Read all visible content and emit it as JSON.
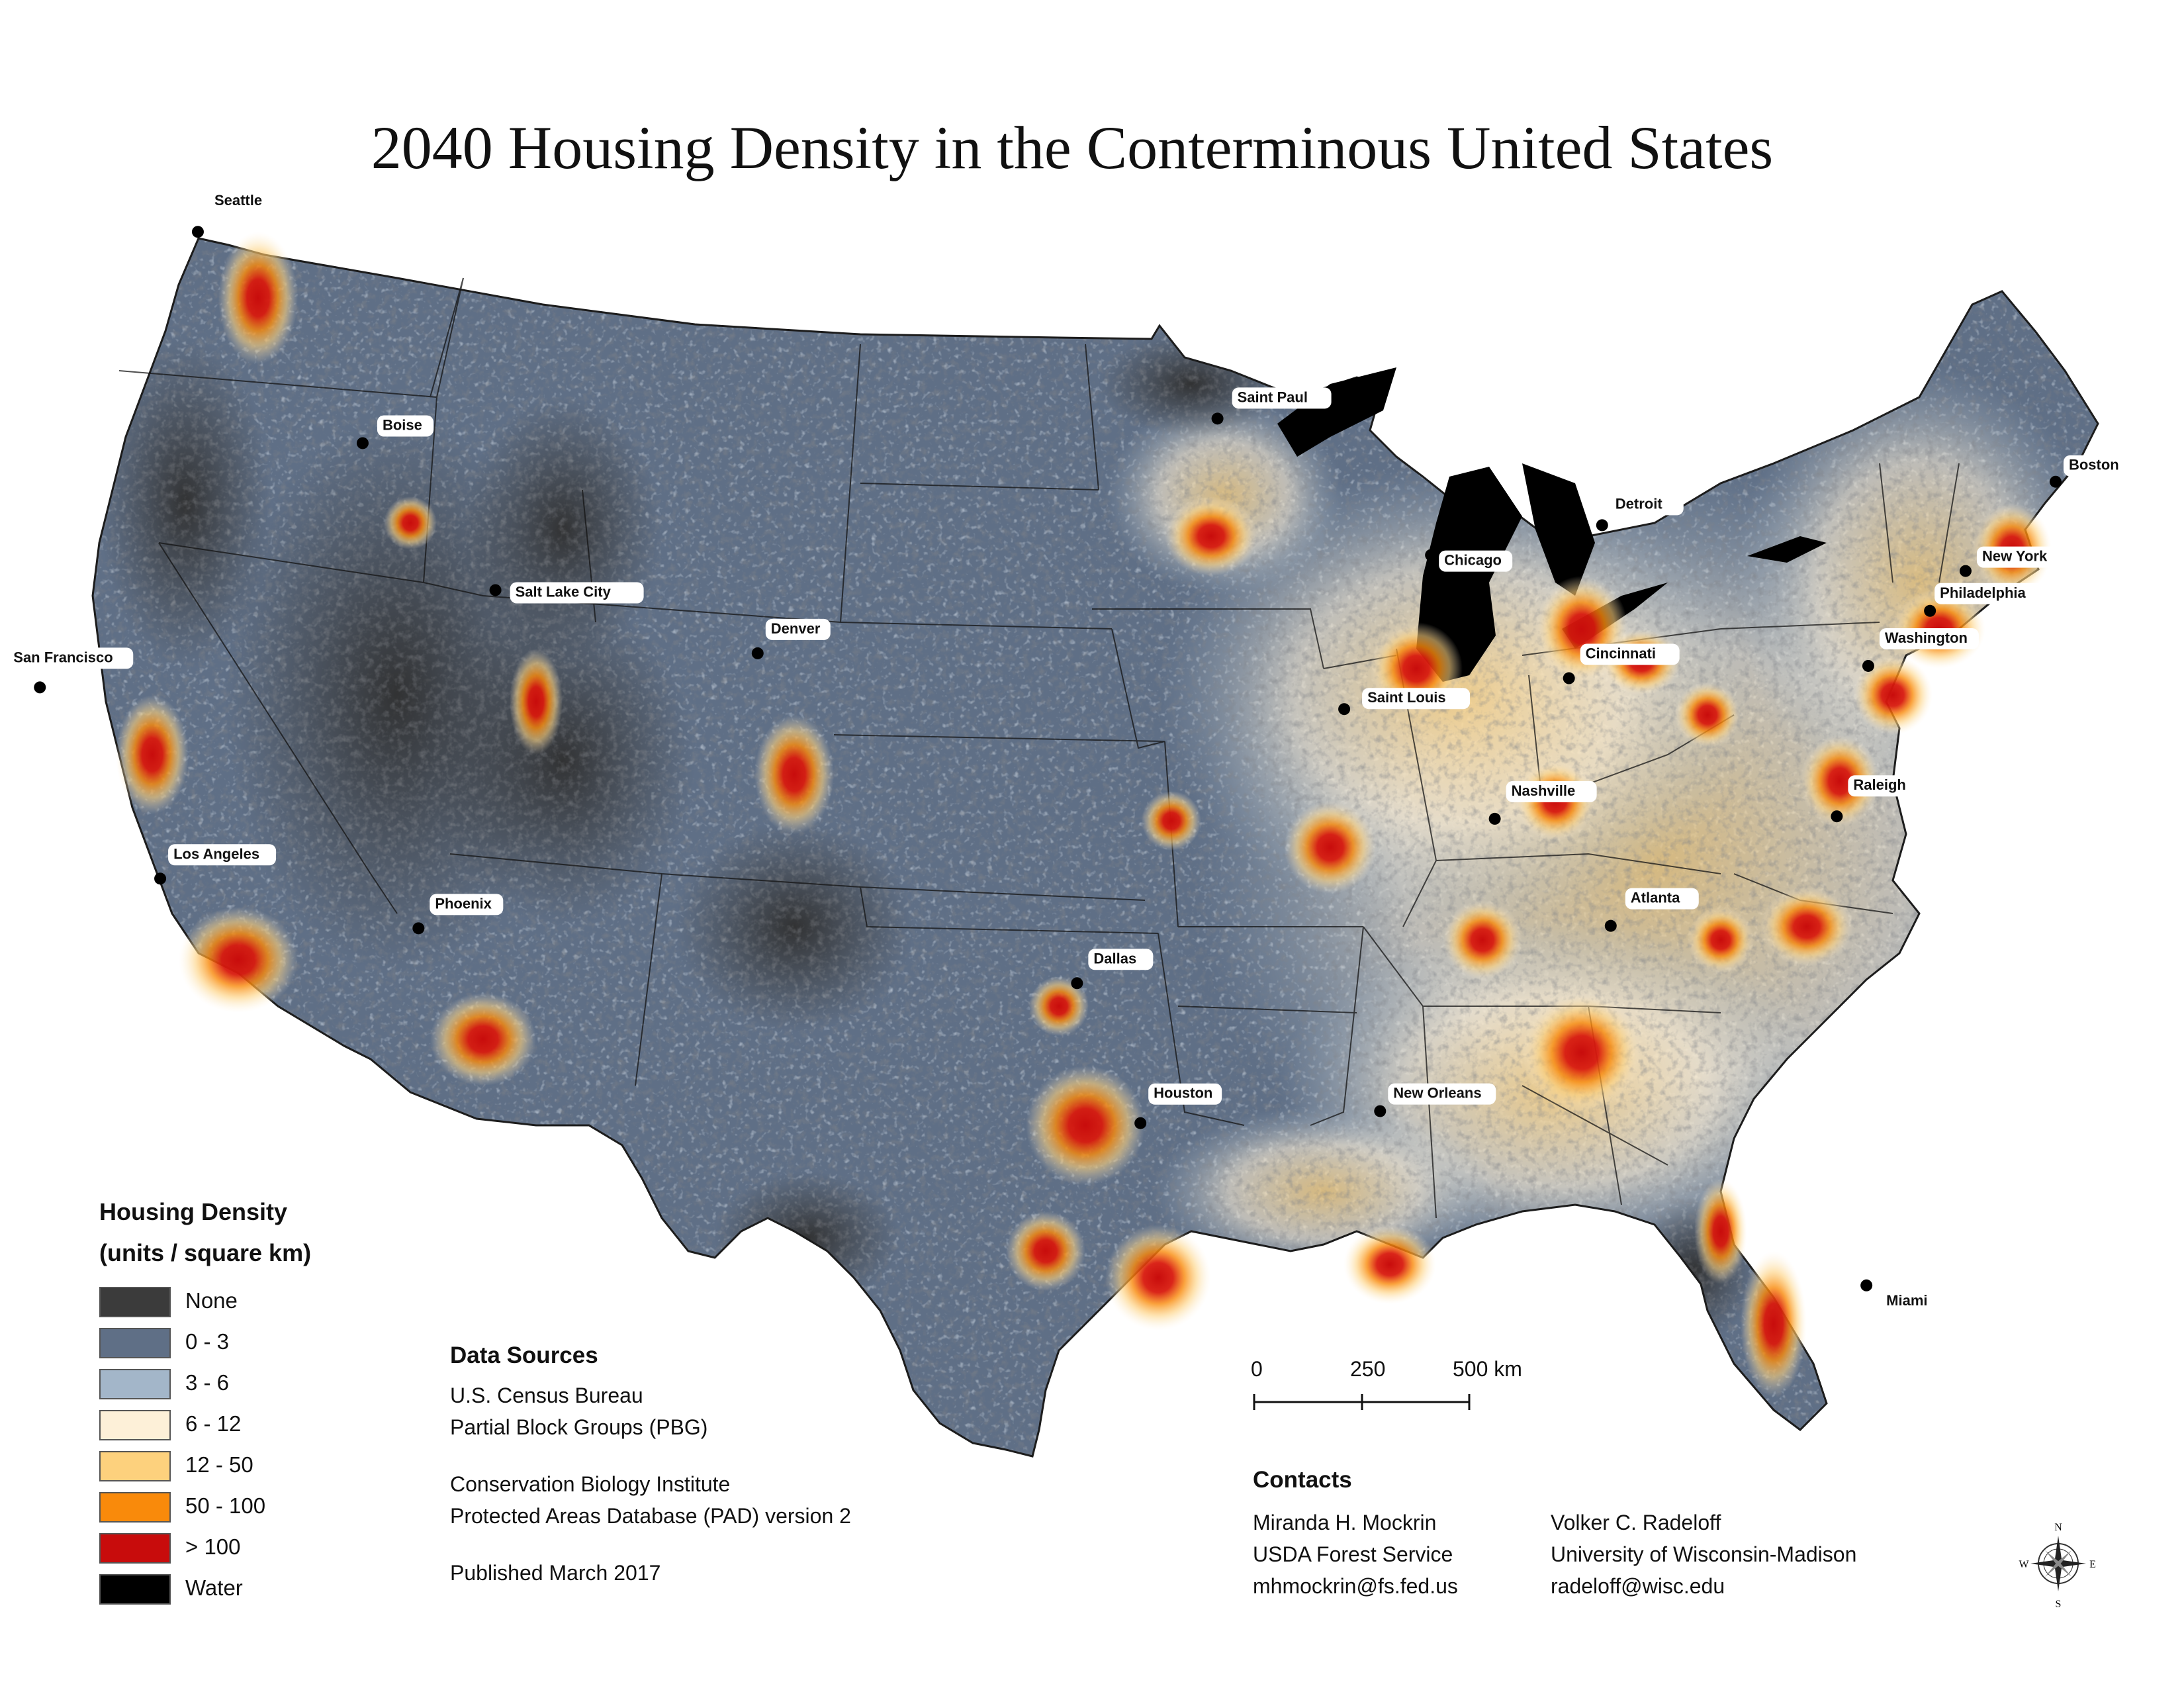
{
  "title": "2040 Housing Density in the Conterminous United States",
  "colors": {
    "none": "#3b3b3b",
    "d0_3": "#5f6f86",
    "d3_6": "#a3b6c9",
    "d6_12": "#fdf0d8",
    "d12_50": "#fdd17d",
    "d50_100": "#f98a0b",
    "d100": "#c80c0c",
    "water": "#000000"
  },
  "legend": {
    "title": "Housing Density",
    "subtitle": "(units / square km)",
    "items": [
      {
        "label": "None",
        "color": "#3b3b3b"
      },
      {
        "label": "0 - 3",
        "color": "#5f6f86"
      },
      {
        "label": "3 - 6",
        "color": "#a3b6c9"
      },
      {
        "label": "6 - 12",
        "color": "#fdf0d8"
      },
      {
        "label": "12 - 50",
        "color": "#fdd17d"
      },
      {
        "label": "50 - 100",
        "color": "#f98a0b"
      },
      {
        "label": "> 100",
        "color": "#c80c0c"
      },
      {
        "label": "Water",
        "color": "#000000"
      }
    ]
  },
  "data_sources": {
    "heading": "Data Sources",
    "line1": "U.S. Census Bureau",
    "line2": "Partial Block Groups (PBG)",
    "line3": "Conservation Biology Institute",
    "line4": "Protected Areas Database (PAD) version 2",
    "published": "Published March 2017"
  },
  "scale_bar": {
    "label_0": "0",
    "label_250": "250",
    "label_500": "500 km"
  },
  "contacts": {
    "heading": "Contacts",
    "person1": {
      "name": "Miranda H. Mockrin",
      "org": "USDA Forest Service",
      "email": "mhmockrin@fs.fed.us"
    },
    "person2": {
      "name": "Volker C. Radeloff",
      "org": "University of Wisconsin-Madison",
      "email": "radeloff@wisc.edu"
    }
  },
  "compass": {
    "n": "N",
    "s": "S",
    "e": "E",
    "w": "W"
  },
  "cities": [
    {
      "name": "Seattle",
      "lon": -122.33,
      "lat": 47.61
    },
    {
      "name": "Boise",
      "lon": -116.2,
      "lat": 43.62
    },
    {
      "name": "Salt Lake City",
      "lon": -111.89,
      "lat": 40.76
    },
    {
      "name": "San Francisco",
      "lon": -122.42,
      "lat": 37.77
    },
    {
      "name": "Los Angeles",
      "lon": -118.24,
      "lat": 34.05
    },
    {
      "name": "Phoenix",
      "lon": -112.07,
      "lat": 33.45
    },
    {
      "name": "Denver",
      "lon": -104.99,
      "lat": 39.74
    },
    {
      "name": "Dallas",
      "lon": -96.8,
      "lat": 32.78
    },
    {
      "name": "Houston",
      "lon": -95.37,
      "lat": 29.76
    },
    {
      "name": "Saint Paul",
      "lon": -93.09,
      "lat": 44.95
    },
    {
      "name": "Saint Louis",
      "lon": -90.2,
      "lat": 38.63
    },
    {
      "name": "Chicago",
      "lon": -87.63,
      "lat": 41.88
    },
    {
      "name": "Detroit",
      "lon": -83.05,
      "lat": 42.33
    },
    {
      "name": "Cincinnati",
      "lon": -84.51,
      "lat": 39.1
    },
    {
      "name": "Nashville",
      "lon": -86.78,
      "lat": 36.16
    },
    {
      "name": "Atlanta",
      "lon": -84.39,
      "lat": 33.75
    },
    {
      "name": "New Orleans",
      "lon": -90.07,
      "lat": 29.95
    },
    {
      "name": "Miami",
      "lon": -80.19,
      "lat": 25.76
    },
    {
      "name": "Raleigh",
      "lon": -78.64,
      "lat": 35.78
    },
    {
      "name": "Washington",
      "lon": -77.04,
      "lat": 38.91
    },
    {
      "name": "Philadelphia",
      "lon": -75.17,
      "lat": 39.95
    },
    {
      "name": "New York",
      "lon": -74.01,
      "lat": 40.71
    },
    {
      "name": "Boston",
      "lon": -71.06,
      "lat": 42.36
    }
  ]
}
